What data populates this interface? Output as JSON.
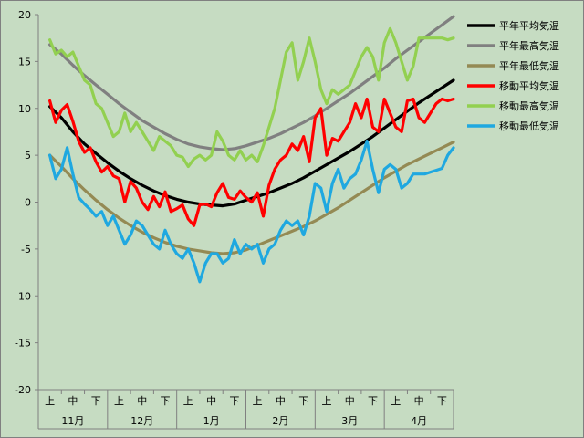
{
  "chart_data": {
    "type": "line",
    "ylim": [
      -20,
      20
    ],
    "yticks": [
      20,
      15,
      10,
      5,
      0,
      -5,
      -10,
      -15,
      -20
    ],
    "period_labels": [
      "上",
      "中",
      "下",
      "上",
      "中",
      "下",
      "上",
      "中",
      "下",
      "上",
      "中",
      "下",
      "上",
      "中",
      "下",
      "上",
      "中",
      "下"
    ],
    "month_labels": [
      "11月",
      "12月",
      "1月",
      "2月",
      "3月",
      "4月"
    ],
    "legend_position": "top-right",
    "grid": false,
    "series": [
      {
        "name": "平年平均気温",
        "color": "#000000",
        "x": [
          0,
          0.5,
          1,
          1.5,
          2,
          2.5,
          3,
          3.5,
          4,
          4.5,
          5,
          5.5,
          6,
          6.5,
          7,
          7.5,
          8,
          8.5,
          9,
          9.5,
          10,
          10.5,
          11,
          11.5,
          12,
          12.5,
          13,
          13.5,
          14,
          14.5,
          15,
          15.5,
          16,
          16.5,
          17,
          17.5
        ],
        "values": [
          10.2,
          9.0,
          7.5,
          6.2,
          5.2,
          4.2,
          3.3,
          2.5,
          1.8,
          1.2,
          0.7,
          0.3,
          0.0,
          -0.2,
          -0.3,
          -0.4,
          -0.2,
          0.2,
          0.6,
          1.0,
          1.5,
          2.0,
          2.6,
          3.3,
          4.0,
          4.7,
          5.4,
          6.2,
          7.0,
          7.9,
          8.8,
          9.7,
          10.6,
          11.4,
          12.2,
          13.0
        ]
      },
      {
        "name": "平年最高気温",
        "color": "#808080",
        "x": [
          0,
          0.5,
          1,
          1.5,
          2,
          2.5,
          3,
          3.5,
          4,
          4.5,
          5,
          5.5,
          6,
          6.5,
          7,
          7.5,
          8,
          8.5,
          9,
          9.5,
          10,
          10.5,
          11,
          11.5,
          12,
          12.5,
          13,
          13.5,
          14,
          14.5,
          15,
          15.5,
          16,
          16.5,
          17,
          17.5
        ],
        "values": [
          16.8,
          15.8,
          14.6,
          13.5,
          12.5,
          11.5,
          10.5,
          9.6,
          8.7,
          8.0,
          7.3,
          6.7,
          6.2,
          5.9,
          5.7,
          5.6,
          5.7,
          6.0,
          6.4,
          6.8,
          7.3,
          7.9,
          8.5,
          9.2,
          10.0,
          10.8,
          11.6,
          12.5,
          13.4,
          14.3,
          15.3,
          16.2,
          17.1,
          18.0,
          18.9,
          19.8
        ]
      },
      {
        "name": "平年最低気温",
        "color": "#948a54",
        "x": [
          0,
          0.5,
          1,
          1.5,
          2,
          2.5,
          3,
          3.5,
          4,
          4.5,
          5,
          5.5,
          6,
          6.5,
          7,
          7.5,
          8,
          8.5,
          9,
          9.5,
          10,
          10.5,
          11,
          11.5,
          12,
          12.5,
          13,
          13.5,
          14,
          14.5,
          15,
          15.5,
          16,
          16.5,
          17,
          17.5
        ],
        "values": [
          5.0,
          3.8,
          2.5,
          1.3,
          0.2,
          -0.8,
          -1.7,
          -2.5,
          -3.2,
          -3.8,
          -4.3,
          -4.7,
          -5.0,
          -5.2,
          -5.4,
          -5.5,
          -5.4,
          -5.1,
          -4.6,
          -4.1,
          -3.6,
          -3.1,
          -2.6,
          -2.0,
          -1.3,
          -0.6,
          0.2,
          1.0,
          1.8,
          2.6,
          3.3,
          4.0,
          4.6,
          5.2,
          5.8,
          6.4
        ]
      },
      {
        "name": "移動平均気温",
        "color": "#ff0000",
        "x": [
          0,
          0.25,
          0.5,
          0.75,
          1,
          1.25,
          1.5,
          1.75,
          2,
          2.25,
          2.5,
          2.75,
          3,
          3.25,
          3.5,
          3.75,
          4,
          4.25,
          4.5,
          4.75,
          5,
          5.25,
          5.5,
          5.75,
          6,
          6.25,
          6.5,
          6.75,
          7,
          7.25,
          7.5,
          7.75,
          8,
          8.25,
          8.5,
          8.75,
          9,
          9.25,
          9.5,
          9.75,
          10,
          10.25,
          10.5,
          10.75,
          11,
          11.25,
          11.5,
          11.75,
          12,
          12.25,
          12.5,
          12.75,
          13,
          13.25,
          13.5,
          13.75,
          14,
          14.25,
          14.5,
          14.75,
          15,
          15.25,
          15.5,
          15.75,
          16,
          16.25,
          16.5,
          16.75,
          17,
          17.25,
          17.5
        ],
        "values": [
          10.8,
          8.5,
          9.8,
          10.4,
          8.6,
          6.5,
          5.3,
          5.8,
          4.3,
          3.2,
          3.8,
          2.8,
          2.5,
          0.0,
          2.2,
          1.5,
          0.0,
          -0.8,
          0.6,
          -0.5,
          1.1,
          -1.0,
          -0.7,
          -0.3,
          -1.8,
          -2.5,
          -0.3,
          -0.2,
          -0.5,
          1.0,
          2.0,
          0.5,
          0.3,
          1.2,
          0.5,
          0.0,
          1.0,
          -1.5,
          1.8,
          3.5,
          4.5,
          5.0,
          6.2,
          5.5,
          7.0,
          4.3,
          9.0,
          10.0,
          5.0,
          6.8,
          6.5,
          7.5,
          8.5,
          10.5,
          9.0,
          11.0,
          8.0,
          7.5,
          11.0,
          9.5,
          8.0,
          7.5,
          10.8,
          11.0,
          9.0,
          8.5,
          9.5,
          10.5,
          11.0,
          10.8,
          11.0
        ]
      },
      {
        "name": "移動最高気温",
        "color": "#92d050",
        "x": [
          0,
          0.25,
          0.5,
          0.75,
          1,
          1.25,
          1.5,
          1.75,
          2,
          2.25,
          2.5,
          2.75,
          3,
          3.25,
          3.5,
          3.75,
          4,
          4.25,
          4.5,
          4.75,
          5,
          5.25,
          5.5,
          5.75,
          6,
          6.25,
          6.5,
          6.75,
          7,
          7.25,
          7.5,
          7.75,
          8,
          8.25,
          8.5,
          8.75,
          9,
          9.25,
          9.5,
          9.75,
          10,
          10.25,
          10.5,
          10.75,
          11,
          11.25,
          11.5,
          11.75,
          12,
          12.25,
          12.5,
          12.75,
          13,
          13.25,
          13.5,
          13.75,
          14,
          14.25,
          14.5,
          14.75,
          15,
          15.25,
          15.5,
          15.75,
          16,
          16.25,
          16.5,
          16.75,
          17,
          17.25,
          17.5
        ],
        "values": [
          17.3,
          15.8,
          16.2,
          15.5,
          16.0,
          14.5,
          13.0,
          12.5,
          10.5,
          10.0,
          8.5,
          7.0,
          7.5,
          9.5,
          7.5,
          8.5,
          7.5,
          6.5,
          5.5,
          7.0,
          6.5,
          6.0,
          5.0,
          4.8,
          3.8,
          4.6,
          5.0,
          4.5,
          5.0,
          7.5,
          6.5,
          5.0,
          4.5,
          5.5,
          4.5,
          5.0,
          4.3,
          6.0,
          8.0,
          10.0,
          13.0,
          16.0,
          17.0,
          13.0,
          15.0,
          17.5,
          15.0,
          12.0,
          10.5,
          12.0,
          11.5,
          12.0,
          12.5,
          14.0,
          15.5,
          16.5,
          15.5,
          13.0,
          17.0,
          18.5,
          17.0,
          15.0,
          13.0,
          14.5,
          17.5,
          17.5,
          17.5,
          17.5,
          17.5,
          17.3,
          17.5
        ]
      },
      {
        "name": "移動最低気温",
        "color": "#1fa8e0",
        "x": [
          0,
          0.25,
          0.5,
          0.75,
          1,
          1.25,
          1.5,
          1.75,
          2,
          2.25,
          2.5,
          2.75,
          3,
          3.25,
          3.5,
          3.75,
          4,
          4.25,
          4.5,
          4.75,
          5,
          5.25,
          5.5,
          5.75,
          6,
          6.25,
          6.5,
          6.75,
          7,
          7.25,
          7.5,
          7.75,
          8,
          8.25,
          8.5,
          8.75,
          9,
          9.25,
          9.5,
          9.75,
          10,
          10.25,
          10.5,
          10.75,
          11,
          11.25,
          11.5,
          11.75,
          12,
          12.25,
          12.5,
          12.75,
          13,
          13.25,
          13.5,
          13.75,
          14,
          14.25,
          14.5,
          14.75,
          15,
          15.25,
          15.5,
          15.75,
          16,
          16.25,
          16.5,
          16.75,
          17,
          17.25,
          17.5
        ],
        "values": [
          5.0,
          2.5,
          3.5,
          5.8,
          3.0,
          0.5,
          -0.2,
          -0.8,
          -1.5,
          -1.0,
          -2.5,
          -1.5,
          -3.0,
          -4.5,
          -3.5,
          -2.0,
          -2.5,
          -3.5,
          -4.5,
          -5.0,
          -3.0,
          -4.5,
          -5.5,
          -6.0,
          -5.0,
          -6.5,
          -8.5,
          -6.5,
          -5.5,
          -5.5,
          -6.5,
          -6.0,
          -4.0,
          -5.5,
          -4.5,
          -5.0,
          -4.5,
          -6.5,
          -5.0,
          -4.5,
          -3.0,
          -2.0,
          -2.5,
          -2.0,
          -3.5,
          -1.5,
          2.0,
          1.5,
          -1.0,
          2.0,
          3.5,
          1.5,
          2.5,
          3.0,
          4.5,
          6.5,
          3.5,
          1.0,
          3.5,
          4.0,
          3.5,
          1.5,
          2.0,
          3.0,
          3.0,
          3.0,
          3.2,
          3.4,
          3.6,
          5.0,
          5.8
        ]
      }
    ]
  }
}
